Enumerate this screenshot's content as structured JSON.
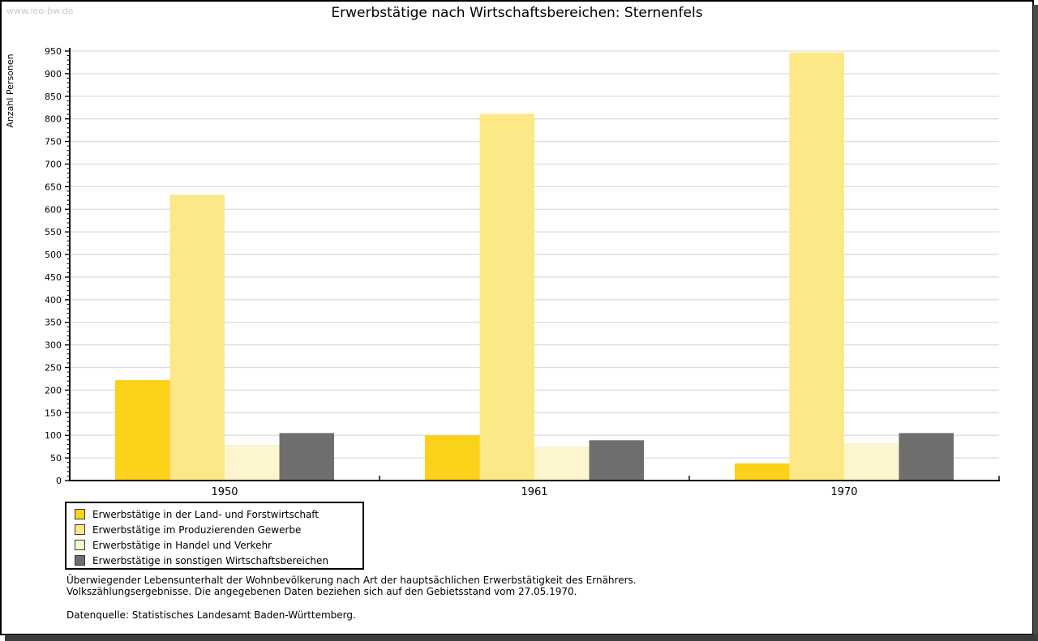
{
  "page": {
    "watermark": "www.leo-bw.de",
    "title": "Erwerbstätige nach Wirtschaftsbereichen: Sternenfels",
    "footnote_line1": "Überwiegender Lebensunterhalt der Wohnbevölkerung nach Art der hauptsächlichen Erwerbstätigkeit des Ernährers.",
    "footnote_line2": "Volkszählungsergebnisse. Die angegebenen Daten beziehen sich auf den Gebietsstand vom 27.05.1970.",
    "source_line": "Datenquelle: Statistisches Landesamt Baden-Württemberg."
  },
  "chart_data": {
    "type": "bar",
    "title": "Erwerbstätige nach Wirtschaftsbereichen: Sternenfels",
    "xlabel": "",
    "ylabel": "Anzahl Personen",
    "categories": [
      "1950",
      "1961",
      "1970"
    ],
    "series": [
      {
        "name": "Erwerbstätige in der Land- und Forstwirtschaft",
        "color": "#fbd11a",
        "values": [
          222,
          100,
          38
        ]
      },
      {
        "name": "Erwerbstätige im Produzierenden Gewerbe",
        "color": "#fce886",
        "values": [
          632,
          811,
          947
        ]
      },
      {
        "name": "Erwerbstätige in Handel und Verkehr",
        "color": "#fdf5cd",
        "values": [
          79,
          75,
          83
        ]
      },
      {
        "name": "Erwerbstätige in sonstigen Wirtschaftsbereichen",
        "color": "#6e6e6e",
        "values": [
          105,
          89,
          105
        ]
      }
    ],
    "ylim": [
      0,
      950
    ],
    "y_tick_step": 50,
    "y_minor_tick_step": 10,
    "grid": "horizontal",
    "gridline_color": "#dcdcdc",
    "axis_color": "#000000",
    "legend_position": "bottom-left"
  }
}
